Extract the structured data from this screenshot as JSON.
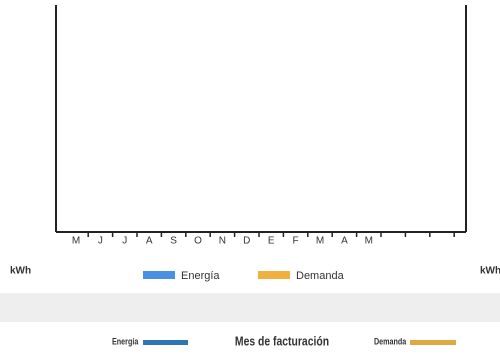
{
  "chart_data": {
    "type": "bar",
    "categories": [
      "M",
      "J",
      "J",
      "A",
      "S",
      "O",
      "N",
      "D",
      "E",
      "F",
      "M",
      "A",
      "M",
      null,
      null,
      null
    ],
    "series": [
      {
        "name": "Energía",
        "color": "#4a90e2",
        "values": [
          null,
          null,
          null,
          null,
          null,
          null,
          null,
          null,
          null,
          null,
          null,
          null,
          null,
          null,
          null,
          null
        ]
      },
      {
        "name": "Demanda",
        "color": "#f0b040",
        "values": [
          null,
          null,
          null,
          null,
          null,
          null,
          null,
          null,
          null,
          null,
          null,
          null,
          null,
          null,
          null,
          null
        ]
      }
    ],
    "ylabel": "kWh",
    "y2label": "kWh",
    "xlabel": "Mes de facturación"
  }
}
